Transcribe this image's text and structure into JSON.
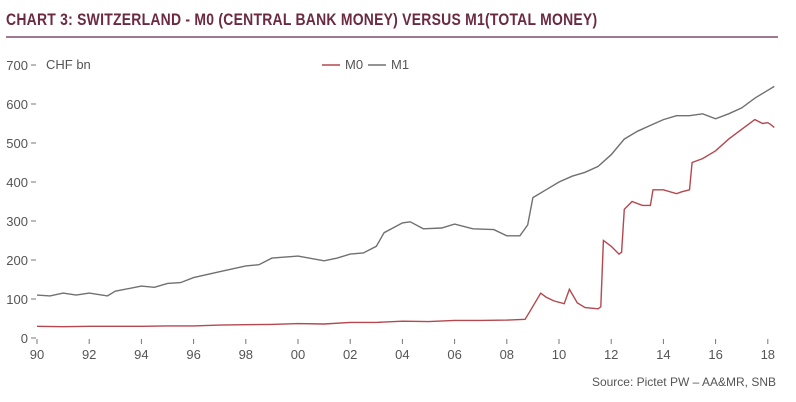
{
  "chart_data": {
    "type": "line",
    "title": "CHART 3: SWITZERLAND - M0 (CENTRAL BANK MONEY) VERSUS M1(TOTAL MONEY)",
    "ylabel": "CHF bn",
    "xlabel": "",
    "ylim": [
      0,
      700
    ],
    "xlim": [
      1990,
      2018.3
    ],
    "yticks": [
      "0",
      "100",
      "200",
      "300",
      "400",
      "500",
      "600",
      "700"
    ],
    "xticks": [
      "90",
      "92",
      "94",
      "96",
      "98",
      "00",
      "02",
      "04",
      "06",
      "08",
      "10",
      "12",
      "14",
      "16",
      "18"
    ],
    "legend": {
      "placement": "top-center",
      "entries": [
        "M0",
        "M1"
      ]
    },
    "source": "Source: Pictet PW – AA&MR, SNB",
    "series": [
      {
        "name": "M0",
        "color": "#b5474f",
        "points": [
          [
            1990,
            30
          ],
          [
            1991,
            29
          ],
          [
            1992,
            30
          ],
          [
            1993,
            30
          ],
          [
            1994,
            30
          ],
          [
            1995,
            31
          ],
          [
            1996,
            31
          ],
          [
            1997,
            33
          ],
          [
            1998,
            34
          ],
          [
            1999,
            35
          ],
          [
            2000,
            37
          ],
          [
            2001,
            36
          ],
          [
            2002,
            40
          ],
          [
            2003,
            40
          ],
          [
            2004,
            43
          ],
          [
            2005,
            42
          ],
          [
            2006,
            45
          ],
          [
            2007,
            45
          ],
          [
            2008,
            46
          ],
          [
            2008.7,
            48
          ],
          [
            2008.9,
            70
          ],
          [
            2009.3,
            115
          ],
          [
            2009.5,
            105
          ],
          [
            2009.8,
            95
          ],
          [
            2010.2,
            88
          ],
          [
            2010.4,
            125
          ],
          [
            2010.7,
            90
          ],
          [
            2011,
            78
          ],
          [
            2011.5,
            75
          ],
          [
            2011.6,
            80
          ],
          [
            2011.7,
            250
          ],
          [
            2012,
            235
          ],
          [
            2012.3,
            215
          ],
          [
            2012.4,
            220
          ],
          [
            2012.5,
            330
          ],
          [
            2012.8,
            350
          ],
          [
            2013.2,
            340
          ],
          [
            2013.5,
            340
          ],
          [
            2013.6,
            380
          ],
          [
            2014,
            380
          ],
          [
            2014.5,
            370
          ],
          [
            2014.7,
            375
          ],
          [
            2015,
            380
          ],
          [
            2015.1,
            450
          ],
          [
            2015.5,
            460
          ],
          [
            2016,
            480
          ],
          [
            2016.5,
            510
          ],
          [
            2017,
            535
          ],
          [
            2017.5,
            560
          ],
          [
            2017.8,
            550
          ],
          [
            2018,
            552
          ],
          [
            2018.1,
            548
          ],
          [
            2018.25,
            540
          ]
        ]
      },
      {
        "name": "M1",
        "color": "#707070",
        "points": [
          [
            1990,
            110
          ],
          [
            1990.5,
            108
          ],
          [
            1991,
            115
          ],
          [
            1991.5,
            110
          ],
          [
            1992,
            115
          ],
          [
            1992.7,
            108
          ],
          [
            1993,
            120
          ],
          [
            1994,
            133
          ],
          [
            1994.5,
            130
          ],
          [
            1995,
            140
          ],
          [
            1995.5,
            142
          ],
          [
            1996,
            155
          ],
          [
            1997,
            170
          ],
          [
            1998,
            185
          ],
          [
            1998.5,
            188
          ],
          [
            1999,
            205
          ],
          [
            2000,
            210
          ],
          [
            2001,
            198
          ],
          [
            2001.5,
            205
          ],
          [
            2002,
            215
          ],
          [
            2002.5,
            218
          ],
          [
            2003,
            235
          ],
          [
            2003.3,
            270
          ],
          [
            2004,
            295
          ],
          [
            2004.3,
            298
          ],
          [
            2004.8,
            280
          ],
          [
            2005.5,
            282
          ],
          [
            2006,
            292
          ],
          [
            2006.7,
            280
          ],
          [
            2007.5,
            278
          ],
          [
            2008,
            262
          ],
          [
            2008.5,
            262
          ],
          [
            2008.8,
            290
          ],
          [
            2009,
            360
          ],
          [
            2009.5,
            380
          ],
          [
            2010,
            400
          ],
          [
            2010.5,
            415
          ],
          [
            2011,
            425
          ],
          [
            2011.5,
            440
          ],
          [
            2012,
            470
          ],
          [
            2012.5,
            510
          ],
          [
            2013,
            530
          ],
          [
            2013.5,
            545
          ],
          [
            2014,
            560
          ],
          [
            2014.5,
            570
          ],
          [
            2015,
            570
          ],
          [
            2015.5,
            575
          ],
          [
            2016,
            562
          ],
          [
            2016.5,
            575
          ],
          [
            2017,
            590
          ],
          [
            2017.5,
            615
          ],
          [
            2018,
            635
          ],
          [
            2018.25,
            645
          ]
        ]
      }
    ]
  }
}
